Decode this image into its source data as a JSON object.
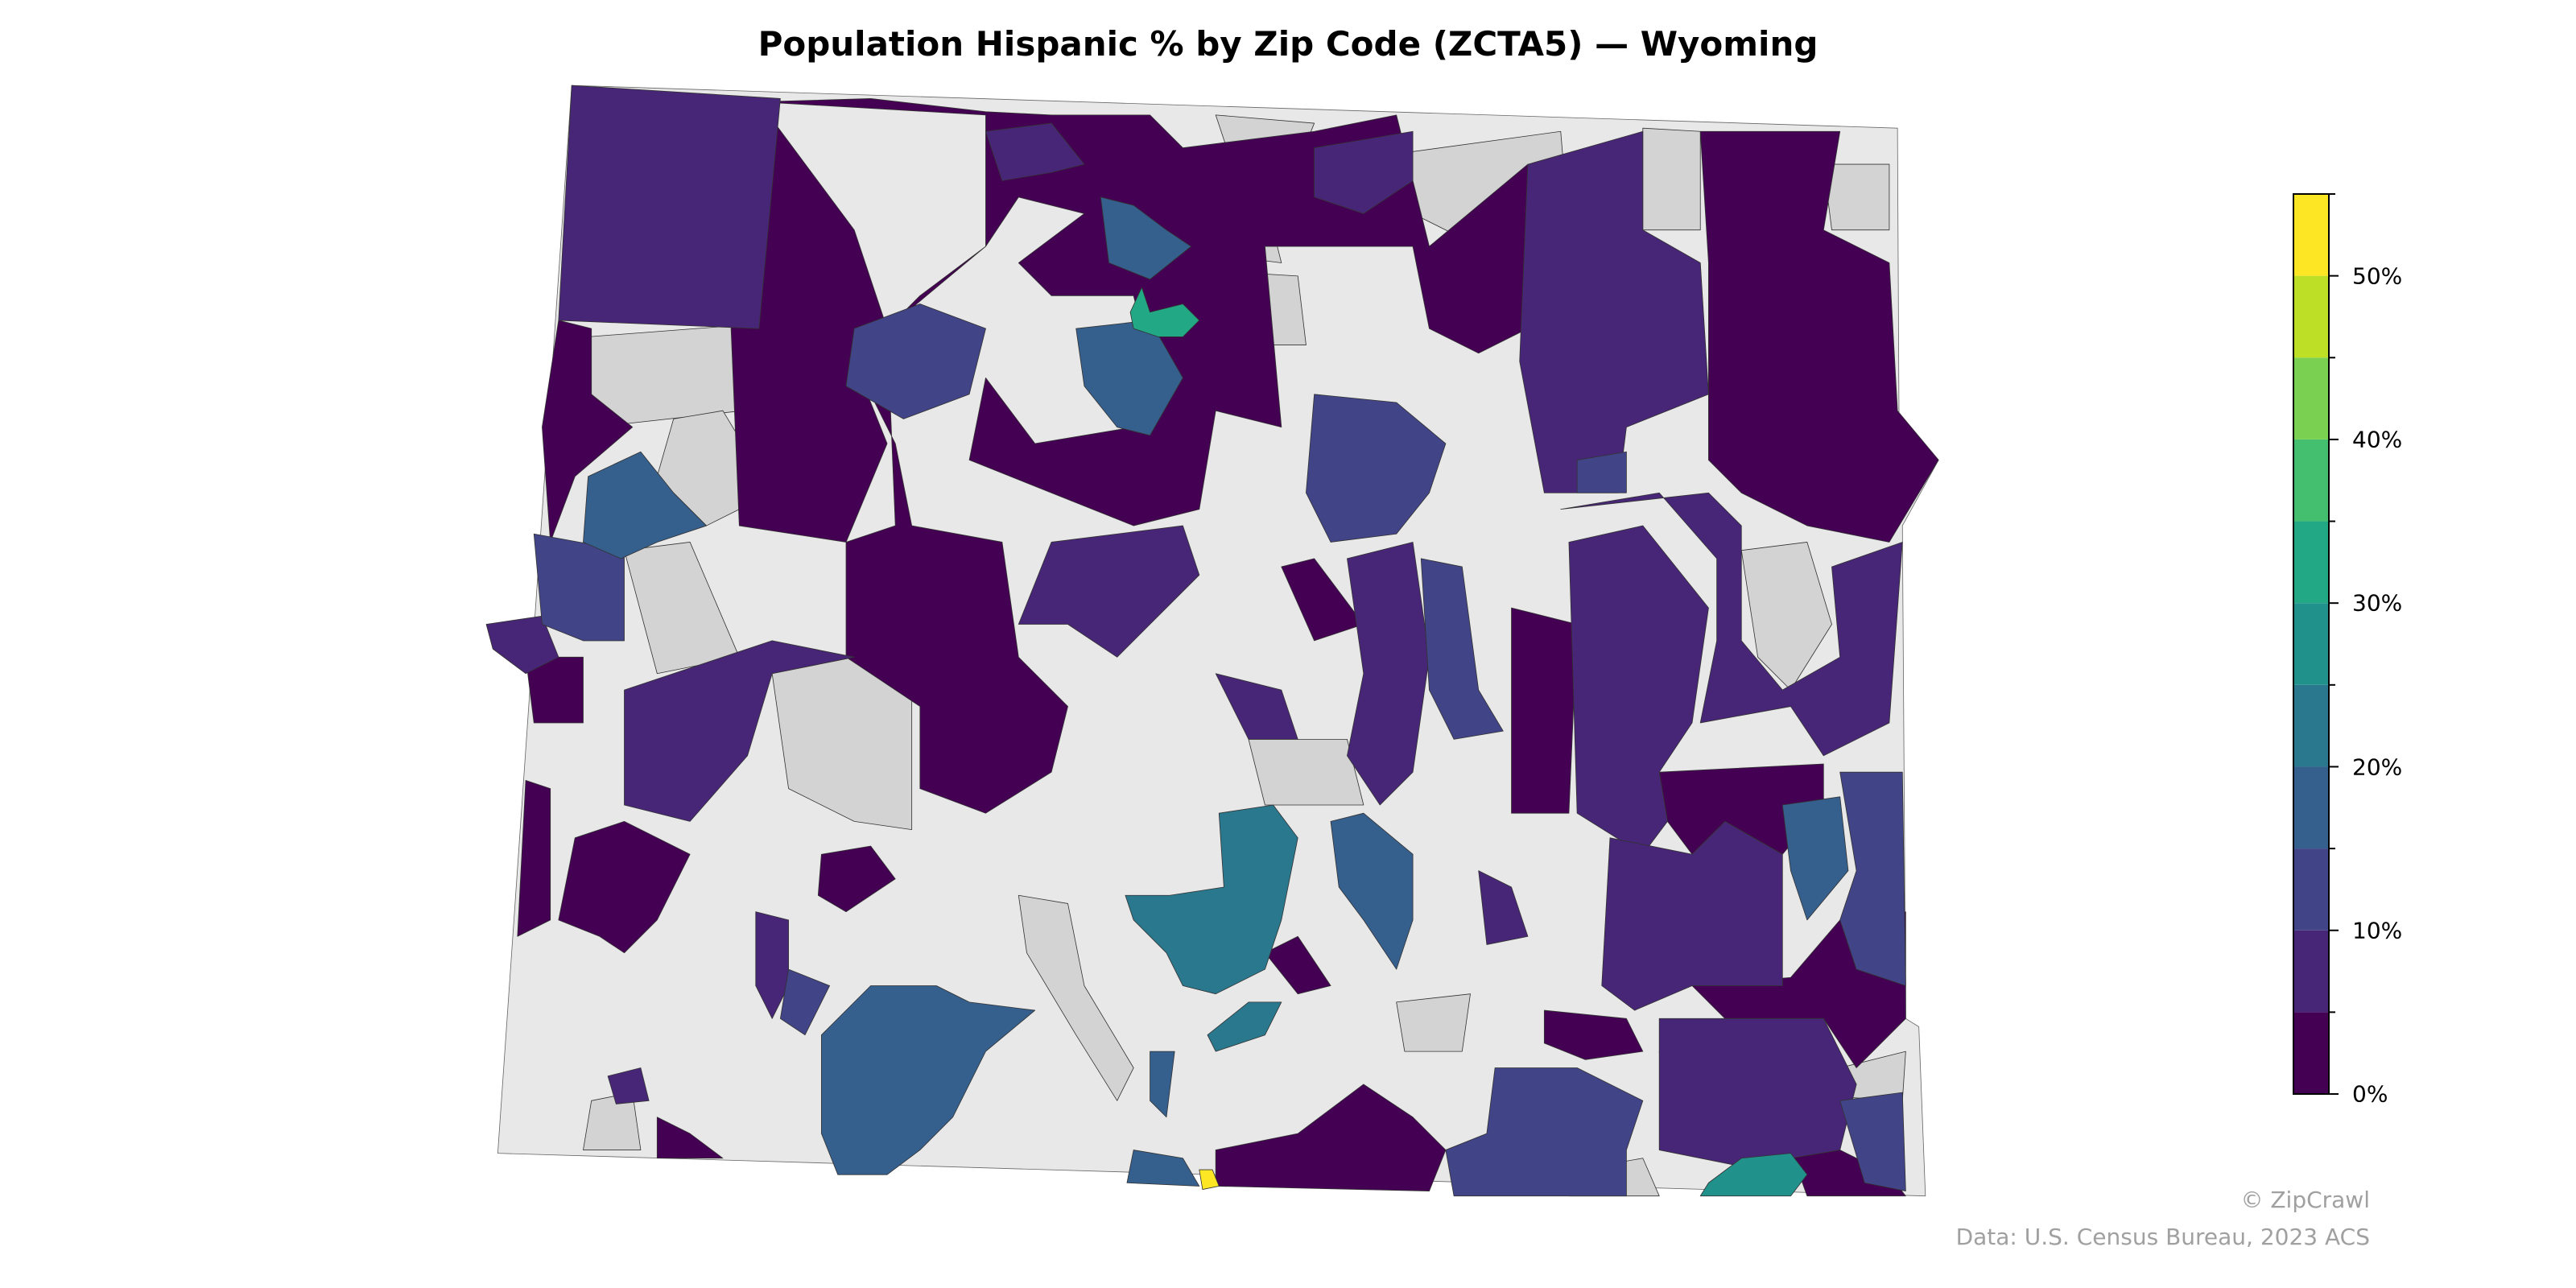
{
  "title": "Population Hispanic % by Zip Code (ZCTA5) — Wyoming",
  "colors": {
    "state_background": "#e8e8e8",
    "no_data": "#d3d3d3",
    "border": "#333333"
  },
  "colorbar": {
    "colormap": "viridis",
    "min": 0,
    "max": 55,
    "bin_width": 5,
    "bins": [
      "#440154",
      "#482677",
      "#414487",
      "#355f8d",
      "#2a788e",
      "#21918c",
      "#22a884",
      "#44bf70",
      "#7ad151",
      "#bddf26",
      "#fde725"
    ],
    "tick_labels": [
      "0%",
      "10%",
      "20%",
      "30%",
      "40%",
      "50%"
    ],
    "tick_values": [
      0,
      10,
      20,
      30,
      40,
      50
    ]
  },
  "credits": {
    "brand": "© ZipCrawl",
    "source": "Data: U.S. Census Bureau, 2023 ACS"
  }
}
